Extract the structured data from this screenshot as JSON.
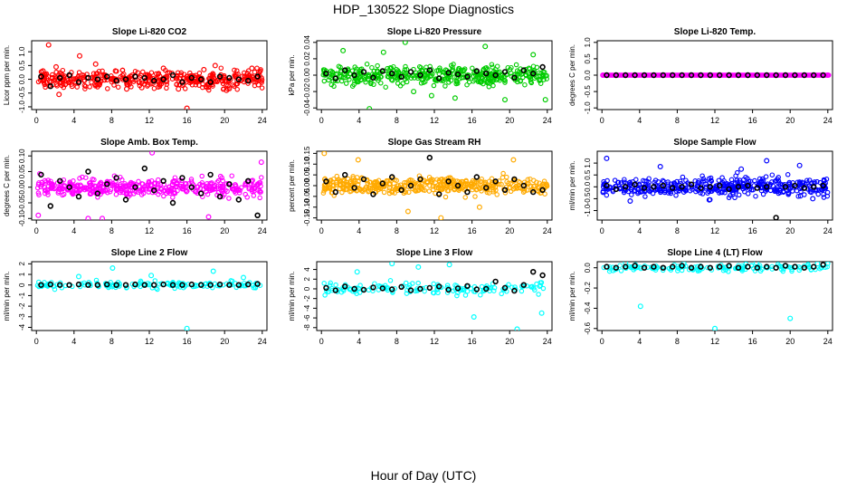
{
  "figure": {
    "title": "HDP_130522  Slope Diagnostics",
    "xlabel": "Hour of Day (UTC)"
  },
  "chart_data": [
    {
      "type": "scatter",
      "title": "Slope Li-820 CO2",
      "ylabel": "Licor ppm per min.",
      "color": "#ff0000",
      "ylim": [
        -1.1,
        1.4
      ],
      "yticks": [
        -1.0,
        -0.5,
        0.0,
        0.5,
        1.0
      ],
      "ytick_labels": [
        "-1.0",
        "-0.5",
        "0.0",
        "0.5",
        "1.0"
      ],
      "xlim": [
        -0.5,
        24.5
      ],
      "xticks": [
        0,
        4,
        8,
        12,
        16,
        20,
        24
      ],
      "series": [
        {
          "name": "slope",
          "color": "#ff0000",
          "x": [
            1.3,
            2.4,
            4.6,
            16.0,
            2.1,
            9.6,
            13.5,
            20.2,
            0.7,
            6.3,
            11.2,
            17.8,
            22.9,
            3.8,
            8.4,
            15.1,
            19.0,
            23.6
          ],
          "y": [
            1.25,
            -0.55,
            0.85,
            -1.05,
            0.45,
            -0.35,
            0.4,
            -0.4,
            0.3,
            0.55,
            -0.3,
            0.35,
            0.4,
            -0.25,
            0.3,
            -0.35,
            0.5,
            -0.2
          ]
        },
        {
          "name": "hourly",
          "color": "#000000",
          "x": [
            0.5,
            1.5,
            2.5,
            3.5,
            4.5,
            5.5,
            6.5,
            7.5,
            8.5,
            9.5,
            10.5,
            11.5,
            12.5,
            13.5,
            14.5,
            15.5,
            16.5,
            17.5,
            18.5,
            19.5,
            20.5,
            21.5,
            22.5,
            23.5
          ],
          "y": [
            0.1,
            -0.25,
            0.05,
            0.15,
            -0.1,
            0.05,
            0.0,
            0.1,
            -0.05,
            0.0,
            0.1,
            0.05,
            -0.05,
            0.0,
            0.15,
            -0.1,
            0.05,
            0.0,
            -0.1,
            0.1,
            0.05,
            0.0,
            -0.05,
            0.1
          ]
        }
      ]
    },
    {
      "type": "scatter",
      "title": "Slope Li-820 Pressure",
      "ylabel": "kPa per min.",
      "color": "#00cc00",
      "ylim": [
        -0.042,
        0.042
      ],
      "yticks": [
        -0.04,
        -0.02,
        0.0,
        0.02,
        0.04
      ],
      "ytick_labels": [
        "-0.04",
        "-0.02",
        "0.00",
        "0.02",
        "0.04"
      ],
      "xlim": [
        -0.5,
        24.5
      ],
      "xticks": [
        0,
        4,
        8,
        12,
        16,
        20,
        24
      ],
      "series": [
        {
          "name": "slope",
          "color": "#00cc00",
          "x": [
            5.1,
            8.9,
            14.2,
            19.5,
            2.3,
            11.7,
            17.4,
            23.8,
            6.6,
            9.8,
            22.5
          ],
          "y": [
            -0.041,
            0.04,
            -0.028,
            -0.03,
            0.03,
            -0.025,
            0.035,
            -0.03,
            0.028,
            -0.02,
            0.025
          ]
        },
        {
          "name": "hourly",
          "color": "#000000",
          "x": [
            0.5,
            1.5,
            2.5,
            3.5,
            4.5,
            5.5,
            6.5,
            7.5,
            8.5,
            9.5,
            10.5,
            11.5,
            12.5,
            13.5,
            14.5,
            15.5,
            16.5,
            17.5,
            18.5,
            19.5,
            20.5,
            21.5,
            22.5,
            23.5
          ],
          "y": [
            0.002,
            -0.004,
            0.006,
            0.0,
            0.004,
            -0.003,
            0.005,
            0.002,
            -0.002,
            0.004,
            0.0,
            0.006,
            -0.004,
            0.003,
            0.001,
            -0.002,
            0.005,
            0.002,
            0.0,
            0.004,
            -0.003,
            0.006,
            0.002,
            0.01
          ]
        }
      ]
    },
    {
      "type": "scatter",
      "title": "Slope Li-820 Temp.",
      "ylabel": "degrees C per min.",
      "color": "#ff00ff",
      "ylim": [
        -1.05,
        1.05
      ],
      "yticks": [
        -1.0,
        -0.5,
        0.0,
        0.5,
        1.0
      ],
      "ytick_labels": [
        "-1.0",
        "-0.5",
        "0.0",
        "0.5",
        "1.0"
      ],
      "xlim": [
        -0.5,
        24.5
      ],
      "xticks": [
        0,
        4,
        8,
        12,
        16,
        20,
        24
      ],
      "series": [
        {
          "name": "slope",
          "color": "#ff00ff",
          "x": [
            0.1,
            24.0
          ],
          "y": [
            0.0,
            0.0
          ]
        },
        {
          "name": "hourly",
          "color": "#000000",
          "x": [
            0.5,
            1.5,
            2.5,
            3.5,
            4.5,
            5.5,
            6.5,
            7.5,
            8.5,
            9.5,
            10.5,
            11.5,
            12.5,
            13.5,
            14.5,
            15.5,
            16.5,
            17.5,
            18.5,
            19.5,
            20.5,
            21.5,
            22.5,
            23.5
          ],
          "y": [
            0,
            0,
            0,
            0,
            0,
            0,
            0,
            0,
            0,
            0,
            0,
            0,
            0,
            0,
            0,
            0,
            0,
            0,
            0,
            0,
            0,
            0,
            0,
            0
          ]
        }
      ]
    },
    {
      "type": "scatter",
      "title": "Slope Amb. Box Temp.",
      "ylabel": "degrees C per min.",
      "color": "#ff00ff",
      "ylim": [
        -0.105,
        0.115
      ],
      "yticks": [
        -0.1,
        -0.05,
        0.0,
        0.05,
        0.1
      ],
      "ytick_labels": [
        "-0.10",
        "-0.05",
        "0.00",
        "0.05",
        "0.10"
      ],
      "xlim": [
        -0.5,
        24.5
      ],
      "xticks": [
        0,
        4,
        8,
        12,
        16,
        20,
        24
      ],
      "series": [
        {
          "name": "slope",
          "color": "#ff00ff",
          "x": [
            5.5,
            7.0,
            12.3,
            0.2,
            23.9,
            18.3
          ],
          "y": [
            -0.1,
            -0.1,
            0.11,
            -0.09,
            0.08,
            -0.095
          ]
        },
        {
          "name": "hourly",
          "color": "#000000",
          "x": [
            0.5,
            1.5,
            2.5,
            3.5,
            4.5,
            5.5,
            6.5,
            7.5,
            8.5,
            9.5,
            10.5,
            11.5,
            12.5,
            13.5,
            14.5,
            15.5,
            16.5,
            17.5,
            18.5,
            19.5,
            20.5,
            21.5,
            22.5,
            23.5
          ],
          "y": [
            0.04,
            -0.06,
            0.02,
            0.0,
            -0.03,
            0.05,
            -0.02,
            0.01,
            0.03,
            -0.04,
            0.0,
            0.06,
            -0.01,
            0.02,
            -0.05,
            0.03,
            0.0,
            -0.02,
            0.04,
            -0.03,
            0.01,
            -0.04,
            0.02,
            -0.09
          ]
        }
      ]
    },
    {
      "type": "scatter",
      "title": "Slope Gas Stream RH",
      "ylabel": "percent per min.",
      "color": "#ffaa00",
      "ylim": [
        -0.16,
        0.16
      ],
      "yticks": [
        -0.15,
        -0.1,
        -0.05,
        0.0,
        0.05,
        0.1,
        0.15
      ],
      "ytick_labels": [
        "-0.15",
        "-0.10",
        "-0.05",
        "0.00",
        "0.05",
        "0.10",
        "0.15"
      ],
      "xlim": [
        -0.5,
        24.5
      ],
      "xticks": [
        0,
        4,
        8,
        12,
        16,
        20,
        24
      ],
      "series": [
        {
          "name": "slope",
          "color": "#ffaa00",
          "x": [
            0.3,
            12.7,
            3.9,
            9.2,
            20.4,
            16.8
          ],
          "y": [
            0.15,
            -0.15,
            0.12,
            -0.12,
            0.12,
            -0.1
          ]
        },
        {
          "name": "hourly",
          "color": "#000000",
          "x": [
            0.5,
            1.5,
            2.5,
            3.5,
            4.5,
            5.5,
            6.5,
            7.5,
            8.5,
            9.5,
            10.5,
            11.5,
            12.5,
            13.5,
            14.5,
            15.5,
            16.5,
            17.5,
            18.5,
            19.5,
            20.5,
            21.5,
            22.5,
            23.5
          ],
          "y": [
            0.02,
            -0.03,
            0.05,
            -0.01,
            0.03,
            -0.04,
            0.01,
            0.04,
            -0.02,
            0.0,
            0.03,
            0.13,
            -0.04,
            0.02,
            0.0,
            -0.03,
            0.04,
            -0.01,
            0.02,
            -0.02,
            0.03,
            0.0,
            -0.03,
            -0.02
          ]
        }
      ]
    },
    {
      "type": "scatter",
      "title": "Slope Sample Flow",
      "ylabel": "ml/min per min.",
      "color": "#0000ff",
      "ylim": [
        -1.4,
        1.5
      ],
      "yticks": [
        -1.0,
        -0.5,
        0.0,
        0.5,
        1.0
      ],
      "ytick_labels": [
        "-1.0",
        "-0.5",
        "0.0",
        "0.5",
        "1.0"
      ],
      "xlim": [
        -0.5,
        24.5
      ],
      "xticks": [
        0,
        4,
        8,
        12,
        16,
        20,
        24
      ],
      "series": [
        {
          "name": "slope",
          "color": "#0000ff",
          "x": [
            0.5,
            6.2,
            17.5,
            21.0,
            3.0,
            11.4,
            14.8,
            22.4
          ],
          "y": [
            1.2,
            0.85,
            1.1,
            0.9,
            -0.6,
            -0.55,
            0.75,
            -0.5
          ]
        },
        {
          "name": "hourly",
          "color": "#000000",
          "x": [
            0.5,
            1.5,
            2.5,
            3.5,
            4.5,
            5.5,
            6.5,
            7.5,
            8.5,
            9.5,
            10.5,
            11.5,
            12.5,
            13.5,
            14.5,
            15.5,
            16.5,
            17.5,
            18.5,
            19.5,
            20.5,
            21.5,
            22.5,
            23.5
          ],
          "y": [
            0.05,
            -0.1,
            0.0,
            0.1,
            -0.05,
            0.0,
            0.05,
            -0.05,
            0.0,
            0.1,
            -0.05,
            0.0,
            0.05,
            -0.1,
            0.0,
            0.05,
            -0.05,
            0.0,
            -1.3,
            0.0,
            0.05,
            -0.05,
            0.0,
            0.05
          ]
        }
      ]
    },
    {
      "type": "scatter",
      "title": "Slope Line 2 Flow",
      "ylabel": "ml/min per min.",
      "color": "#00ffff",
      "ylim": [
        -4.3,
        2.2
      ],
      "yticks": [
        -4,
        -3,
        -2,
        -1,
        0,
        1,
        2
      ],
      "ytick_labels": [
        "-4",
        "-3",
        "-2",
        "-1",
        "0",
        "1",
        "2"
      ],
      "xlim": [
        -0.5,
        24.5
      ],
      "xticks": [
        0,
        4,
        8,
        12,
        16,
        20,
        24
      ],
      "series": [
        {
          "name": "slope",
          "color": "#00ffff",
          "x": [
            16.0,
            8.1,
            18.8,
            4.5,
            12.2,
            22.0
          ],
          "y": [
            -4.1,
            1.6,
            1.3,
            0.8,
            0.9,
            0.7
          ]
        },
        {
          "name": "hourly",
          "color": "#000000",
          "x": [
            0.5,
            1.5,
            2.5,
            3.5,
            4.5,
            5.5,
            6.5,
            7.5,
            8.5,
            9.5,
            10.5,
            11.5,
            12.5,
            13.5,
            14.5,
            15.5,
            16.5,
            17.5,
            18.5,
            19.5,
            20.5,
            21.5,
            22.5,
            23.5
          ],
          "y": [
            0.0,
            0.05,
            0.0,
            0.0,
            0.05,
            0.0,
            0.0,
            0.05,
            0.0,
            0.0,
            0.05,
            0.0,
            0.0,
            0.05,
            0.0,
            0.0,
            0.05,
            0.0,
            0.0,
            0.05,
            0.0,
            0.0,
            0.05,
            0.1
          ]
        }
      ]
    },
    {
      "type": "scatter",
      "title": "Slope Line 3 Flow",
      "ylabel": "ml/min per min.",
      "color": "#00ffff",
      "ylim": [
        -8.6,
        5.6
      ],
      "yticks": [
        -8,
        -6,
        -4,
        -2,
        0,
        2,
        4
      ],
      "ytick_labels": [
        "-8",
        "-6",
        "-4",
        "-2",
        "0",
        "2",
        "4"
      ],
      "xlim": [
        -0.5,
        24.5
      ],
      "xticks": [
        0,
        4,
        8,
        12,
        16,
        20,
        24
      ],
      "series": [
        {
          "name": "slope",
          "color": "#00ffff",
          "x": [
            20.8,
            16.2,
            23.4,
            7.5,
            10.3,
            13.6,
            3.8
          ],
          "y": [
            -8.3,
            -5.8,
            -5.0,
            5.2,
            4.5,
            5.0,
            3.5
          ]
        },
        {
          "name": "hourly",
          "color": "#000000",
          "x": [
            0.5,
            1.5,
            2.5,
            3.5,
            4.5,
            5.5,
            6.5,
            7.5,
            8.5,
            9.5,
            10.5,
            11.5,
            12.5,
            13.5,
            14.5,
            15.5,
            16.5,
            17.5,
            18.5,
            19.5,
            20.5,
            21.5,
            22.5,
            23.5
          ],
          "y": [
            0.2,
            -0.3,
            0.5,
            0.0,
            -0.2,
            0.3,
            0.1,
            -0.1,
            0.4,
            -0.3,
            0.0,
            0.2,
            0.5,
            -0.2,
            0.1,
            0.6,
            -0.1,
            0.0,
            1.5,
            0.2,
            -0.4,
            0.8,
            3.5,
            2.8
          ]
        }
      ]
    },
    {
      "type": "scatter",
      "title": "Slope Line 4 (LT) Flow",
      "ylabel": "ml/min per min.",
      "color": "#00ffff",
      "ylim": [
        -0.62,
        0.06
      ],
      "yticks": [
        -0.6,
        -0.4,
        -0.2,
        0.0
      ],
      "ytick_labels": [
        "-0.6",
        "-0.4",
        "-0.2",
        "0.0"
      ],
      "xlim": [
        -0.5,
        24.5
      ],
      "xticks": [
        0,
        4,
        8,
        12,
        16,
        20,
        24
      ],
      "series": [
        {
          "name": "slope",
          "color": "#00ffff",
          "x": [
            4.1,
            12.0,
            20.0,
            2.5,
            8.7,
            16.4,
            22.9
          ],
          "y": [
            -0.38,
            -0.6,
            -0.5,
            0.05,
            0.04,
            0.05,
            0.04
          ]
        },
        {
          "name": "hourly",
          "color": "#000000",
          "x": [
            0.5,
            1.5,
            2.5,
            3.5,
            4.5,
            5.5,
            6.5,
            7.5,
            8.5,
            9.5,
            10.5,
            11.5,
            12.5,
            13.5,
            14.5,
            15.5,
            16.5,
            17.5,
            18.5,
            19.5,
            20.5,
            21.5,
            22.5,
            23.5
          ],
          "y": [
            0.01,
            0.0,
            0.01,
            0.02,
            0.0,
            0.01,
            0.0,
            0.01,
            0.02,
            0.0,
            0.01,
            0.0,
            0.01,
            0.02,
            0.0,
            0.01,
            0.0,
            0.01,
            0.0,
            0.02,
            0.01,
            0.0,
            0.01,
            0.03
          ]
        }
      ]
    }
  ]
}
